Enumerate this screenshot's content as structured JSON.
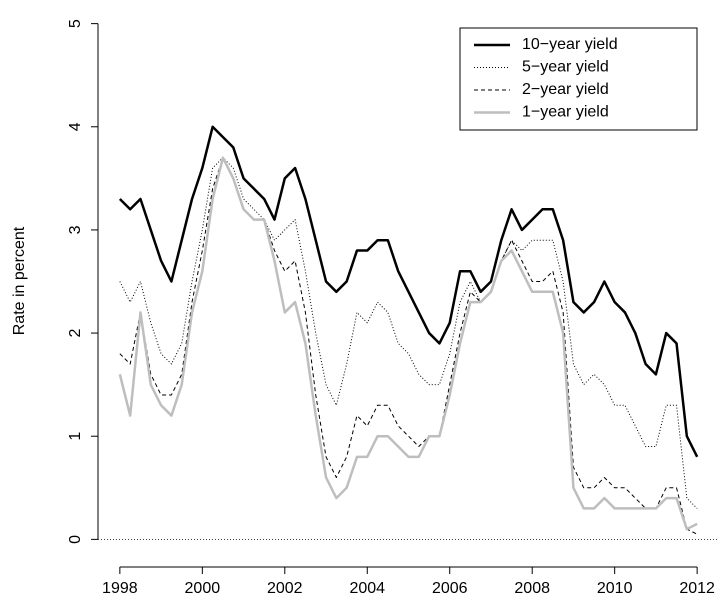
{
  "chart_data": {
    "type": "line",
    "ylabel": "Rate in percent",
    "x": [
      1998.0,
      1998.25,
      1998.5,
      1998.75,
      1999.0,
      1999.25,
      1999.5,
      1999.75,
      2000.0,
      2000.25,
      2000.5,
      2000.75,
      2001.0,
      2001.25,
      2001.5,
      2001.75,
      2002.0,
      2002.25,
      2002.5,
      2002.75,
      2003.0,
      2003.25,
      2003.5,
      2003.75,
      2004.0,
      2004.25,
      2004.5,
      2004.75,
      2005.0,
      2005.25,
      2005.5,
      2005.75,
      2006.0,
      2006.25,
      2006.5,
      2006.75,
      2007.0,
      2007.25,
      2007.5,
      2007.75,
      2008.0,
      2008.25,
      2008.5,
      2008.75,
      2009.0,
      2009.25,
      2009.5,
      2009.75,
      2010.0,
      2010.25,
      2010.5,
      2010.75,
      2011.0,
      2011.25,
      2011.5,
      2011.75,
      2012.0
    ],
    "series": [
      {
        "name": "10−year yield",
        "color": "#000000",
        "line_style": "solid",
        "values": [
          3.3,
          3.2,
          3.3,
          3.0,
          2.7,
          2.5,
          2.9,
          3.3,
          3.6,
          4.0,
          3.9,
          3.8,
          3.5,
          3.4,
          3.3,
          3.1,
          3.5,
          3.6,
          3.3,
          2.9,
          2.5,
          2.4,
          2.5,
          2.8,
          2.8,
          2.9,
          2.9,
          2.6,
          2.4,
          2.2,
          2.0,
          1.9,
          2.1,
          2.6,
          2.6,
          2.4,
          2.5,
          2.9,
          3.2,
          3.0,
          3.1,
          3.2,
          3.2,
          2.9,
          2.3,
          2.2,
          2.3,
          2.5,
          2.3,
          2.2,
          2.0,
          1.7,
          1.6,
          2.0,
          1.9,
          1.0,
          0.8
        ]
      },
      {
        "name": "5−year yield",
        "color": "#000000",
        "line_style": "dotted",
        "values": [
          2.5,
          2.3,
          2.5,
          2.1,
          1.8,
          1.7,
          1.9,
          2.5,
          3.0,
          3.6,
          3.7,
          3.6,
          3.3,
          3.2,
          3.1,
          2.9,
          3.0,
          3.1,
          2.6,
          2.0,
          1.5,
          1.3,
          1.7,
          2.2,
          2.1,
          2.3,
          2.2,
          1.9,
          1.8,
          1.6,
          1.5,
          1.5,
          1.8,
          2.3,
          2.5,
          2.3,
          2.4,
          2.7,
          2.9,
          2.8,
          2.9,
          2.9,
          2.9,
          2.5,
          1.7,
          1.5,
          1.6,
          1.5,
          1.3,
          1.3,
          1.1,
          0.9,
          0.9,
          1.3,
          1.3,
          0.4,
          0.3
        ]
      },
      {
        "name": "2−year yield",
        "color": "#000000",
        "line_style": "dashed",
        "values": [
          1.8,
          1.7,
          2.2,
          1.6,
          1.4,
          1.4,
          1.6,
          2.3,
          2.8,
          3.4,
          3.7,
          3.5,
          3.2,
          3.1,
          3.1,
          2.8,
          2.6,
          2.7,
          2.2,
          1.4,
          0.8,
          0.6,
          0.8,
          1.2,
          1.1,
          1.3,
          1.3,
          1.1,
          1.0,
          0.9,
          1.0,
          1.0,
          1.5,
          2.0,
          2.4,
          2.3,
          2.4,
          2.7,
          2.9,
          2.7,
          2.5,
          2.5,
          2.6,
          2.2,
          0.7,
          0.5,
          0.5,
          0.6,
          0.5,
          0.5,
          0.4,
          0.3,
          0.3,
          0.5,
          0.5,
          0.1,
          0.05
        ]
      },
      {
        "name": "1−year yield",
        "color": "#bebebe",
        "line_style": "solid",
        "values": [
          1.6,
          1.2,
          2.2,
          1.5,
          1.3,
          1.2,
          1.5,
          2.2,
          2.6,
          3.3,
          3.7,
          3.5,
          3.2,
          3.1,
          3.1,
          2.7,
          2.2,
          2.3,
          1.9,
          1.2,
          0.6,
          0.4,
          0.5,
          0.8,
          0.8,
          1.0,
          1.0,
          0.9,
          0.8,
          0.8,
          1.0,
          1.0,
          1.4,
          1.9,
          2.3,
          2.3,
          2.4,
          2.7,
          2.8,
          2.6,
          2.4,
          2.4,
          2.4,
          2.0,
          0.5,
          0.3,
          0.3,
          0.4,
          0.3,
          0.3,
          0.3,
          0.3,
          0.3,
          0.4,
          0.4,
          0.1,
          0.15
        ]
      }
    ],
    "xlim": [
      1997.47,
      2012.53
    ],
    "xticks": [
      1998,
      2000,
      2002,
      2004,
      2006,
      2008,
      2010,
      2012
    ],
    "ylim": [
      -0.2,
      5.2
    ],
    "yticks": [
      0,
      1,
      2,
      3,
      4,
      5
    ],
    "reference_line": 0,
    "legend": "topright"
  }
}
